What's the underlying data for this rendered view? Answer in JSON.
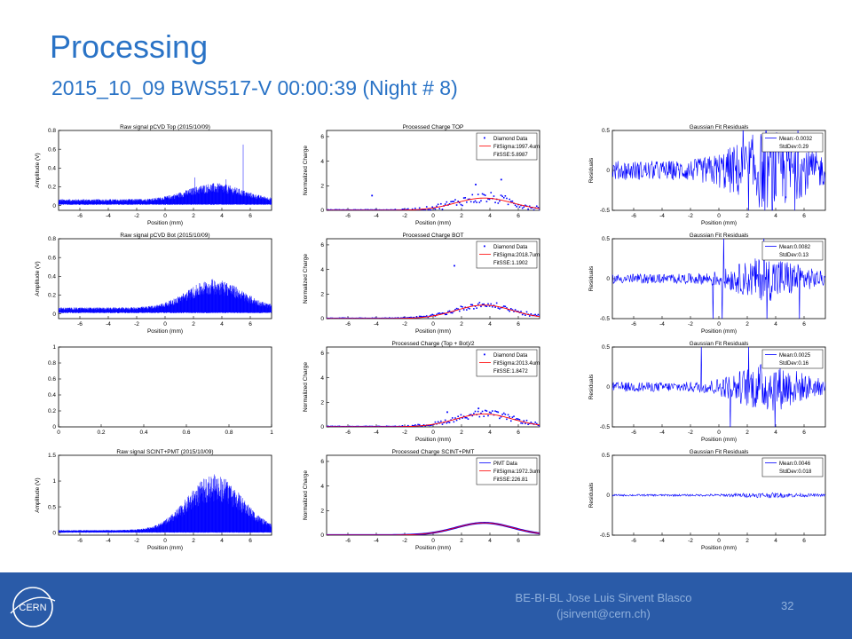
{
  "slide": {
    "title": "Processing",
    "subtitle": "2015_10_09 BWS517-V 00:00:39 (Night # 8)"
  },
  "footer": {
    "logo_text": "CERN",
    "author": "BE-BI-BL Jose Luis Sirvent Blasco",
    "email": "(jsirvent@cern.ch)",
    "page": "32"
  },
  "colors": {
    "title": "#2a73c6",
    "footer_bg": "#2a5ba8",
    "footer_text": "#8fb0dc",
    "series_blue": "#0000ff",
    "fit_red": "#ff0000"
  },
  "chart_data": [
    {
      "type": "line",
      "title": "Raw signal pCVD Top (2015/10/09)",
      "xlabel": "Position (mm)",
      "ylabel": "Amplitude (V)",
      "xlim": [
        -7.5,
        7.5
      ],
      "ylim": [
        -0.05,
        0.8
      ],
      "xticks": [
        "-6",
        "-4",
        "-2",
        "0",
        "2",
        "4",
        "6"
      ],
      "yticks": [
        "0",
        "0.2",
        "0.4",
        "0.6",
        "0.8"
      ],
      "signal": {
        "baseline": 0.03,
        "noise": 0.012,
        "center": 3.5,
        "sigma": 1.9,
        "amplitude": 0.09,
        "peaks": [
          [
            5.5,
            0.65
          ],
          [
            2.1,
            0.3
          ],
          [
            4.3,
            0.28
          ]
        ]
      }
    },
    {
      "type": "scatter",
      "title": "Processed Charge TOP",
      "xlabel": "Position (mm)",
      "ylabel": "Normalized Charge",
      "xlim": [
        -7.5,
        7.5
      ],
      "ylim": [
        0,
        6.5
      ],
      "xticks": [
        "-6",
        "-4",
        "-2",
        "0",
        "2",
        "4",
        "6"
      ],
      "yticks": [
        "0",
        "2",
        "4",
        "6"
      ],
      "legend": [
        "Diamond Data",
        "FitSigma:1997.4um",
        "FitSSE:5.8987"
      ],
      "signal": {
        "center": 3.6,
        "sigma": 2.0,
        "amplitude": 1.0,
        "scatter": 0.45,
        "outliers": [
          [
            5.2,
            6.2
          ],
          [
            -4.3,
            1.2
          ],
          [
            4.8,
            2.5
          ],
          [
            3.0,
            2.1
          ]
        ]
      }
    },
    {
      "type": "line",
      "title": "Gaussian Fit Residuals",
      "xlabel": "Position (mm)",
      "ylabel": "Residuals",
      "xlim": [
        -7.5,
        7.5
      ],
      "ylim": [
        -0.5,
        0.5
      ],
      "xticks": [
        "-6",
        "-4",
        "-2",
        "0",
        "2",
        "4",
        "6"
      ],
      "yticks": [
        "-0.5",
        "0",
        "0.5"
      ],
      "legend": [
        "Mean:-0.0032",
        "StdDev:0.29"
      ],
      "signal": {
        "noise": 0.12,
        "center": 3.5,
        "sigma": 2.2,
        "extra": 0.38
      }
    },
    {
      "type": "line",
      "title": "Raw signal pCVD Bot (2015/10/09)",
      "xlabel": "Position (mm)",
      "ylabel": "Amplitude (V)",
      "xlim": [
        -7.5,
        7.5
      ],
      "ylim": [
        -0.05,
        0.8
      ],
      "xticks": [
        "-6",
        "-4",
        "-2",
        "0",
        "2",
        "4",
        "6"
      ],
      "yticks": [
        "0",
        "0.2",
        "0.4",
        "0.6",
        "0.8"
      ],
      "signal": {
        "baseline": 0.03,
        "noise": 0.012,
        "center": 3.5,
        "sigma": 1.9,
        "amplitude": 0.16,
        "peaks": [
          [
            3.8,
            0.32
          ],
          [
            4.6,
            0.3
          ]
        ]
      }
    },
    {
      "type": "scatter",
      "title": "Processed Charge BOT",
      "xlabel": "Position (mm)",
      "ylabel": "Normalized Charge",
      "xlim": [
        -7.5,
        7.5
      ],
      "ylim": [
        0,
        6.5
      ],
      "xticks": [
        "-6",
        "-4",
        "-2",
        "0",
        "2",
        "4",
        "6"
      ],
      "yticks": [
        "0",
        "2",
        "4",
        "6"
      ],
      "legend": [
        "Diamond Data",
        "FitSigma:2018.7um",
        "FitSSE:1.1902"
      ],
      "signal": {
        "center": 3.6,
        "sigma": 2.0,
        "amplitude": 1.1,
        "scatter": 0.25,
        "outliers": [
          [
            1.5,
            4.3
          ]
        ]
      }
    },
    {
      "type": "line",
      "title": "Gaussian Fit Residuals",
      "xlabel": "Position (mm)",
      "ylabel": "Residuals",
      "xlim": [
        -7.5,
        7.5
      ],
      "ylim": [
        -0.5,
        0.5
      ],
      "xticks": [
        "-6",
        "-4",
        "-2",
        "0",
        "2",
        "4",
        "6"
      ],
      "yticks": [
        "-0.5",
        "0",
        "0.5"
      ],
      "legend": [
        "Mean:0.0082",
        "StdDev:0.13"
      ],
      "signal": {
        "noise": 0.06,
        "center": 3.5,
        "sigma": 2.0,
        "extra": 0.22
      }
    },
    {
      "type": "line",
      "title": "",
      "xlabel": "",
      "ylabel": "",
      "xlim": [
        0,
        1
      ],
      "ylim": [
        0,
        1
      ],
      "xticks": [
        "0",
        "0.2",
        "0.4",
        "0.6",
        "0.8",
        "1"
      ],
      "yticks": [
        "0",
        "0.2",
        "0.4",
        "0.6",
        "0.8",
        "1"
      ],
      "signal": null
    },
    {
      "type": "scatter",
      "title": "Processed Charge (Top + Bot)/2",
      "xlabel": "Position (mm)",
      "ylabel": "Normalized Charge",
      "xlim": [
        -7.5,
        7.5
      ],
      "ylim": [
        0,
        6.5
      ],
      "xticks": [
        "-6",
        "-4",
        "-2",
        "0",
        "2",
        "4",
        "6"
      ],
      "yticks": [
        "0",
        "2",
        "4",
        "6"
      ],
      "legend": [
        "Diamond Data",
        "FitSigma:2013.4um",
        "FitSSE:1.8472"
      ],
      "signal": {
        "center": 3.6,
        "sigma": 2.0,
        "amplitude": 1.05,
        "scatter": 0.3,
        "outliers": [
          [
            1.0,
            1.2
          ],
          [
            3.2,
            1.5
          ]
        ]
      }
    },
    {
      "type": "line",
      "title": "Gaussian Fit Residuals",
      "xlabel": "Position (mm)",
      "ylabel": "Residuals",
      "xlim": [
        -7.5,
        7.5
      ],
      "ylim": [
        -0.5,
        0.5
      ],
      "xticks": [
        "-6",
        "-4",
        "-2",
        "0",
        "2",
        "4",
        "6"
      ],
      "yticks": [
        "-0.5",
        "0",
        "0.5"
      ],
      "legend": [
        "Mean:0.0025",
        "StdDev:0.16"
      ],
      "signal": {
        "noise": 0.06,
        "center": 3.5,
        "sigma": 2.0,
        "extra": 0.25
      }
    },
    {
      "type": "line",
      "title": "Raw signal SCINT+PMT (2015/10/09)",
      "xlabel": "Position (mm)",
      "ylabel": "Amplitude (V)",
      "xlim": [
        -7.5,
        7.5
      ],
      "ylim": [
        -0.05,
        1.5
      ],
      "xticks": [
        "-6",
        "-4",
        "-2",
        "0",
        "2",
        "4",
        "6"
      ],
      "yticks": [
        "0",
        "0.5",
        "1",
        "1.5"
      ],
      "signal": {
        "baseline": 0.02,
        "noise": 0.012,
        "center": 3.5,
        "sigma": 1.9,
        "amplitude": 0.57,
        "peaks": []
      }
    },
    {
      "type": "line",
      "title": "Processed Charge SCINT+PMT",
      "xlabel": "Position (mm)",
      "ylabel": "Normalized Charge",
      "xlim": [
        -7.5,
        7.5
      ],
      "ylim": [
        0,
        6.5
      ],
      "xticks": [
        "-6",
        "-4",
        "-2",
        "0",
        "2",
        "4",
        "6"
      ],
      "yticks": [
        "0",
        "2",
        "4",
        "6"
      ],
      "legend": [
        "PMT Data",
        "FitSigma:1972.3um",
        "FitSSE:226.81"
      ],
      "signal": {
        "center": 3.6,
        "sigma": 2.0,
        "amplitude": 1.0,
        "scatter": 0.02,
        "outliers": []
      }
    },
    {
      "type": "line",
      "title": "Gaussian Fit Residuals",
      "xlabel": "Position (mm)",
      "ylabel": "Residuals",
      "xlim": [
        -7.5,
        7.5
      ],
      "ylim": [
        -0.5,
        0.5
      ],
      "xticks": [
        "-6",
        "-4",
        "-2",
        "0",
        "2",
        "4",
        "6"
      ],
      "yticks": [
        "-0.5",
        "0",
        "0.5"
      ],
      "legend": [
        "Mean:0.0046",
        "StdDev:0.018"
      ],
      "signal": {
        "noise": 0.012,
        "center": 3.5,
        "sigma": 2.0,
        "extra": 0.02
      }
    }
  ]
}
